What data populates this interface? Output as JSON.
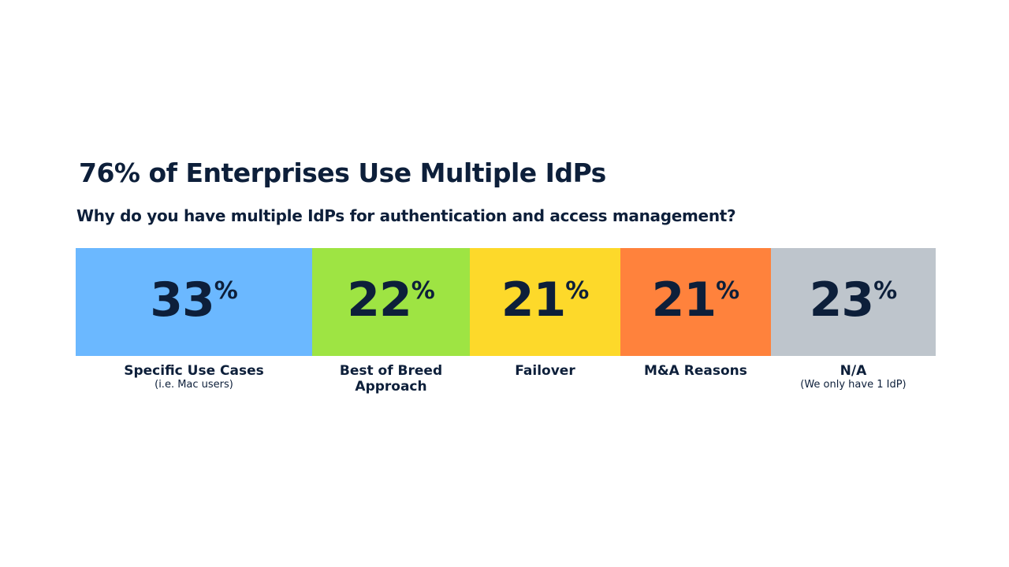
{
  "title": "76% of Enterprises Use Multiple IdPs",
  "subtitle": "Why do you have multiple IdPs for authentication and access management?",
  "colors": {
    "text": "#0d1f3a",
    "specific_use_cases": "#6bb8ff",
    "best_of_breed": "#9ee443",
    "failover": "#fdd92a",
    "m_and_a": "#ff823c",
    "na": "#bec5cc"
  },
  "chart_data": {
    "type": "bar",
    "title": "76% of Enterprises Use Multiple IdPs",
    "subtitle": "Why do you have multiple IdPs for authentication and access management?",
    "value_suffix": "%",
    "segments": [
      {
        "label": "Specific Use Cases",
        "sublabel": "(i.e. Mac users)",
        "value": 33,
        "color": "#6bb8ff"
      },
      {
        "label": "Best of Breed",
        "label2": "Approach",
        "value": 22,
        "color": "#9ee443"
      },
      {
        "label": "Failover",
        "value": 21,
        "color": "#fdd92a"
      },
      {
        "label": "M&A Reasons",
        "value": 21,
        "color": "#ff823c"
      },
      {
        "label": "N/A",
        "sublabel": "(We only have 1 IdP)",
        "value": 23,
        "color": "#bec5cc"
      }
    ]
  }
}
